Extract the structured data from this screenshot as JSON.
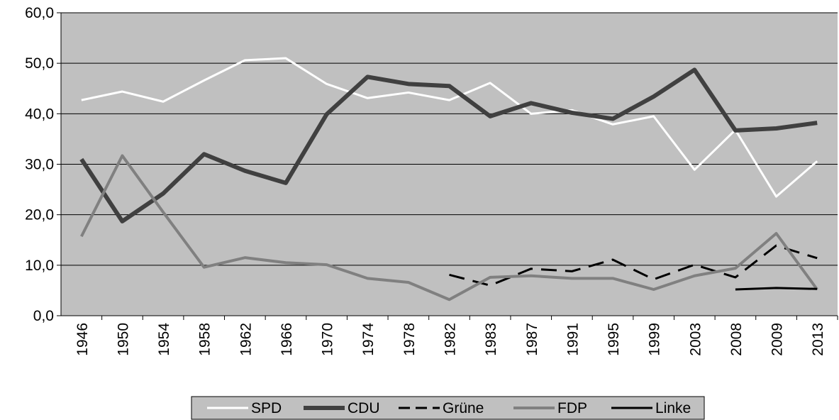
{
  "chart_data": {
    "type": "line",
    "categories": [
      "1946",
      "1950",
      "1954",
      "1958",
      "1962",
      "1966",
      "1970",
      "1974",
      "1978",
      "1982",
      "1983",
      "1987",
      "1991",
      "1995",
      "1999",
      "2003",
      "2008",
      "2009",
      "2013"
    ],
    "series": [
      {
        "name": "SPD",
        "color": "#ffffff",
        "values": [
          42.7,
          44.4,
          42.4,
          46.6,
          50.6,
          51.0,
          45.9,
          43.1,
          44.2,
          42.7,
          46.1,
          40.0,
          40.7,
          37.9,
          39.5,
          28.9,
          36.8,
          23.6,
          30.6
        ]
      },
      {
        "name": "CDU",
        "color": "#404040",
        "values": [
          31.0,
          18.7,
          24.2,
          32.0,
          28.7,
          26.3,
          39.9,
          47.3,
          45.9,
          45.5,
          39.5,
          42.1,
          40.2,
          39.0,
          43.4,
          48.7,
          36.7,
          37.1,
          38.2
        ]
      },
      {
        "name": "Grüne",
        "color": "#000000",
        "dash": true,
        "values": [
          null,
          null,
          null,
          null,
          null,
          null,
          null,
          null,
          null,
          8.1,
          6.0,
          9.3,
          8.8,
          11.1,
          7.2,
          10.1,
          7.6,
          13.9,
          11.4
        ]
      },
      {
        "name": "FDP",
        "color": "#808080",
        "values": [
          15.7,
          31.7,
          20.5,
          9.6,
          11.5,
          10.5,
          10.1,
          7.4,
          6.6,
          3.2,
          7.6,
          7.9,
          7.4,
          7.4,
          5.2,
          7.9,
          9.4,
          16.3,
          5.2
        ]
      },
      {
        "name": "Linke",
        "color": "#000000",
        "values": [
          null,
          null,
          null,
          null,
          null,
          null,
          null,
          null,
          null,
          null,
          null,
          null,
          null,
          null,
          null,
          null,
          5.2,
          5.5,
          5.3
        ]
      }
    ],
    "ylim": [
      0,
      60
    ],
    "yticks": [
      {
        "value": 0,
        "label": "0,0"
      },
      {
        "value": 10,
        "label": "10,0"
      },
      {
        "value": 20,
        "label": "20,0"
      },
      {
        "value": 30,
        "label": "30,0"
      },
      {
        "value": 40,
        "label": "40,0"
      },
      {
        "value": 50,
        "label": "50,0"
      },
      {
        "value": 60,
        "label": "60,0"
      }
    ],
    "grid": true,
    "legend": "bottom",
    "background": "#c0c0c0"
  }
}
